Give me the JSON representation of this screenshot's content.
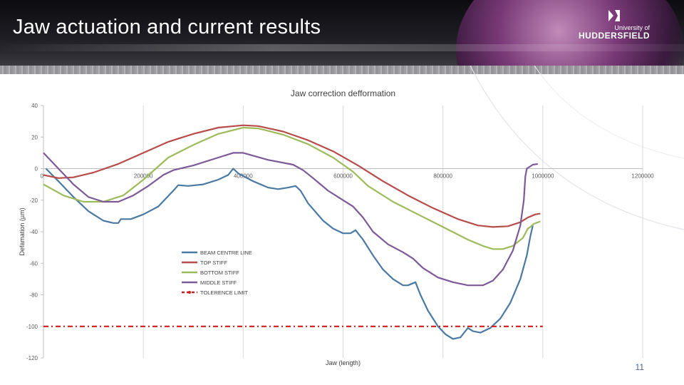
{
  "slide": {
    "title": "Jaw actuation and current results",
    "page_number": "11"
  },
  "logo": {
    "line1": "University of",
    "line2": "HUDDERSFIELD"
  },
  "colors": {
    "beam": "#4a7aa4",
    "top": "#b84c4a",
    "bottom": "#9dbb5a",
    "middle": "#7c5a98",
    "tolerance": "#cc1f1f",
    "grid": "#d9d9d9"
  },
  "chart_data": {
    "type": "line",
    "title": "Jaw correction defformation",
    "xlabel": "Jaw (length)",
    "ylabel": "Defamation (µm)",
    "xlim": [
      0,
      1200000
    ],
    "ylim": [
      -120,
      40
    ],
    "x_ticks": [
      0,
      200000,
      400000,
      600000,
      800000,
      1000000,
      1200000
    ],
    "x_tick_labels": [
      "0",
      "200000",
      "400000",
      "600000",
      "800000",
      "1000000",
      "1200000"
    ],
    "y_ticks": [
      40,
      20,
      0,
      -20,
      -40,
      -60,
      -80,
      -100,
      -120
    ],
    "y_tick_labels": [
      "40",
      "20",
      "0",
      "-20",
      "-40",
      "-60",
      "-80",
      "-100",
      "-120"
    ],
    "grid": "vertical",
    "legend_position": "center-left",
    "series": [
      {
        "name": "BEAM CENTRE LINE",
        "color_key": "beam",
        "points": [
          [
            5000,
            0
          ],
          [
            30000,
            -8
          ],
          [
            60000,
            -18
          ],
          [
            90000,
            -27
          ],
          [
            120000,
            -33
          ],
          [
            140000,
            -34.5
          ],
          [
            150000,
            -34.5
          ],
          [
            155000,
            -32
          ],
          [
            175000,
            -32
          ],
          [
            200000,
            -29
          ],
          [
            230000,
            -24
          ],
          [
            260000,
            -14
          ],
          [
            270000,
            -10.5
          ],
          [
            290000,
            -11
          ],
          [
            320000,
            -10
          ],
          [
            350000,
            -7
          ],
          [
            370000,
            -4
          ],
          [
            380000,
            0
          ],
          [
            390000,
            -3
          ],
          [
            420000,
            -8
          ],
          [
            450000,
            -12
          ],
          [
            470000,
            -13
          ],
          [
            490000,
            -12
          ],
          [
            505000,
            -11
          ],
          [
            515000,
            -14
          ],
          [
            530000,
            -22
          ],
          [
            560000,
            -33
          ],
          [
            580000,
            -38
          ],
          [
            600000,
            -41
          ],
          [
            615000,
            -41
          ],
          [
            625000,
            -39
          ],
          [
            640000,
            -45
          ],
          [
            660000,
            -55
          ],
          [
            680000,
            -64
          ],
          [
            700000,
            -70
          ],
          [
            720000,
            -74
          ],
          [
            730000,
            -74
          ],
          [
            745000,
            -72
          ],
          [
            755000,
            -80
          ],
          [
            770000,
            -90
          ],
          [
            790000,
            -100
          ],
          [
            805000,
            -105
          ],
          [
            820000,
            -108
          ],
          [
            835000,
            -107
          ],
          [
            850000,
            -101
          ],
          [
            860000,
            -103
          ],
          [
            875000,
            -104
          ],
          [
            895000,
            -101
          ],
          [
            915000,
            -95
          ],
          [
            935000,
            -85
          ],
          [
            955000,
            -70
          ],
          [
            968000,
            -55
          ],
          [
            975000,
            -43
          ],
          [
            980000,
            -36
          ]
        ]
      },
      {
        "name": "TOP STIFF",
        "color_key": "top",
        "points": [
          [
            0,
            -4
          ],
          [
            30000,
            -6
          ],
          [
            60000,
            -5.5
          ],
          [
            100000,
            -2.5
          ],
          [
            150000,
            3
          ],
          [
            200000,
            10
          ],
          [
            250000,
            17
          ],
          [
            300000,
            22
          ],
          [
            350000,
            26
          ],
          [
            400000,
            27.5
          ],
          [
            430000,
            27
          ],
          [
            480000,
            23.5
          ],
          [
            530000,
            18
          ],
          [
            580000,
            11
          ],
          [
            630000,
            2
          ],
          [
            680000,
            -8
          ],
          [
            730000,
            -17
          ],
          [
            780000,
            -25
          ],
          [
            830000,
            -32
          ],
          [
            870000,
            -36
          ],
          [
            900000,
            -37
          ],
          [
            930000,
            -36.5
          ],
          [
            955000,
            -34
          ],
          [
            970000,
            -31
          ],
          [
            985000,
            -29
          ],
          [
            995000,
            -28.5
          ]
        ]
      },
      {
        "name": "BOTTOM STIFF",
        "color_key": "bottom",
        "points": [
          [
            0,
            -10
          ],
          [
            40000,
            -17
          ],
          [
            80000,
            -21
          ],
          [
            120000,
            -21
          ],
          [
            160000,
            -17
          ],
          [
            200000,
            -7
          ],
          [
            250000,
            7
          ],
          [
            300000,
            15
          ],
          [
            350000,
            22
          ],
          [
            400000,
            26
          ],
          [
            430000,
            25.5
          ],
          [
            480000,
            21.5
          ],
          [
            530000,
            15.5
          ],
          [
            580000,
            7
          ],
          [
            620000,
            -2
          ],
          [
            650000,
            -11
          ],
          [
            700000,
            -21
          ],
          [
            750000,
            -29
          ],
          [
            800000,
            -37
          ],
          [
            850000,
            -45
          ],
          [
            880000,
            -49
          ],
          [
            900000,
            -51
          ],
          [
            920000,
            -51
          ],
          [
            940000,
            -49
          ],
          [
            960000,
            -44
          ],
          [
            970000,
            -38
          ],
          [
            975000,
            -37
          ],
          [
            982000,
            -35
          ],
          [
            995000,
            -33.5
          ]
        ]
      },
      {
        "name": "MIDDLE STIFF",
        "color_key": "middle",
        "points": [
          [
            0,
            10
          ],
          [
            30000,
            0
          ],
          [
            60000,
            -10
          ],
          [
            90000,
            -18
          ],
          [
            120000,
            -21
          ],
          [
            150000,
            -21
          ],
          [
            180000,
            -17
          ],
          [
            210000,
            -11
          ],
          [
            240000,
            -4
          ],
          [
            260000,
            -1
          ],
          [
            300000,
            2
          ],
          [
            350000,
            7
          ],
          [
            380000,
            10
          ],
          [
            400000,
            10
          ],
          [
            450000,
            5.5
          ],
          [
            500000,
            2.5
          ],
          [
            520000,
            -1
          ],
          [
            540000,
            -6
          ],
          [
            570000,
            -14
          ],
          [
            600000,
            -20
          ],
          [
            620000,
            -24
          ],
          [
            640000,
            -31
          ],
          [
            660000,
            -40
          ],
          [
            690000,
            -48
          ],
          [
            720000,
            -53
          ],
          [
            740000,
            -57
          ],
          [
            760000,
            -63
          ],
          [
            790000,
            -69
          ],
          [
            820000,
            -72
          ],
          [
            850000,
            -74
          ],
          [
            880000,
            -74
          ],
          [
            900000,
            -71
          ],
          [
            920000,
            -64
          ],
          [
            940000,
            -52
          ],
          [
            955000,
            -36
          ],
          [
            962000,
            -20
          ],
          [
            965000,
            -5
          ],
          [
            968000,
            0
          ],
          [
            980000,
            2.5
          ],
          [
            990000,
            3
          ]
        ]
      },
      {
        "name": "TOLERENCE LIMIT",
        "color_key": "tolerance",
        "dashed": true,
        "points": [
          [
            0,
            -100
          ],
          [
            1000000,
            -100
          ]
        ]
      }
    ]
  }
}
